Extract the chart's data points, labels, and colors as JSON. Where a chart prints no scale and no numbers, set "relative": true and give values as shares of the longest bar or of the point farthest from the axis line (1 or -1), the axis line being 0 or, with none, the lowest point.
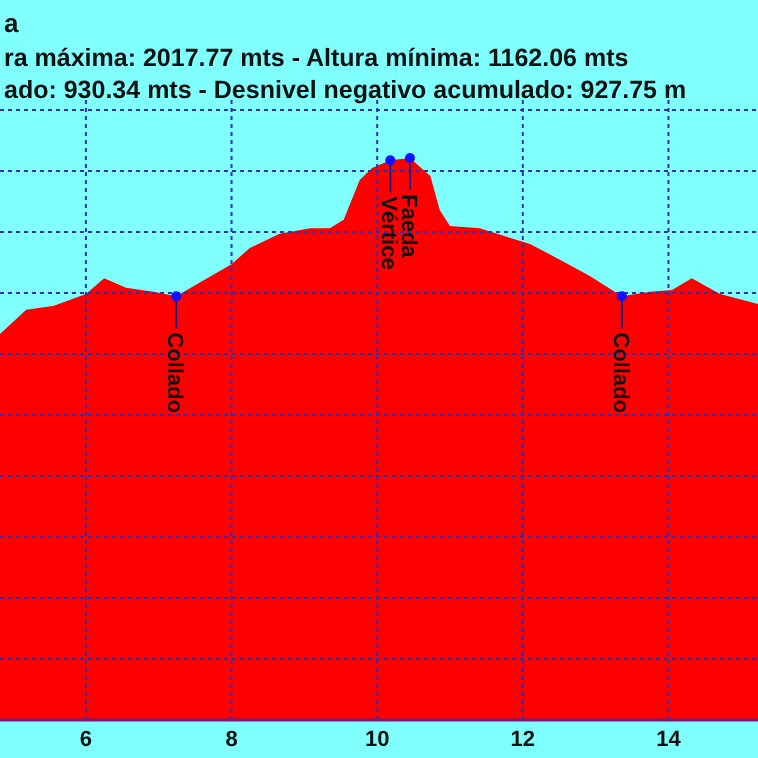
{
  "chart_data": {
    "type": "area",
    "title": "a",
    "subtitle": "ra máxima: 2017.77 mts - Altura mínima: 1162.06 mts\nado: 930.34 mts - Desnivel negativo acumulado: 927.75 m",
    "relative": true,
    "x": [
      4.82,
      5.18,
      5.56,
      6.0,
      6.25,
      6.55,
      6.93,
      7.24,
      7.57,
      8.0,
      8.25,
      8.66,
      9.08,
      9.35,
      9.54,
      9.76,
      9.93,
      10.18,
      10.45,
      10.73,
      10.86,
      11.0,
      11.41,
      11.82,
      12.1,
      12.51,
      12.92,
      13.36,
      13.75,
      14.05,
      14.32,
      14.71,
      15.23
    ],
    "series": [
      {
        "color": "#ff0000",
        "values": [
          0.687,
          0.73,
          0.737,
          0.758,
          0.786,
          0.769,
          0.762,
          0.754,
          0.779,
          0.811,
          0.84,
          0.865,
          0.875,
          0.875,
          0.89,
          0.961,
          0.982,
          0.996,
          1,
          0.968,
          0.907,
          0.879,
          0.875,
          0.858,
          0.847,
          0.819,
          0.79,
          0.754,
          0.762,
          0.765,
          0.786,
          0.758,
          0.74
        ]
      }
    ],
    "xlim": [
      4.82,
      15.23
    ],
    "xticks": [
      6,
      8,
      10,
      12,
      14
    ],
    "grid": true,
    "tick_labels": "x",
    "annotations": [
      {
        "text": "Collado",
        "x": 7.24,
        "y": 0.754
      },
      {
        "text": "Vértice",
        "x": 10.18,
        "y": 0.996
      },
      {
        "text": "Faeda",
        "x": 10.45,
        "y": 1
      },
      {
        "text": "Collado",
        "x": 13.36,
        "y": 0.754
      }
    ]
  }
}
